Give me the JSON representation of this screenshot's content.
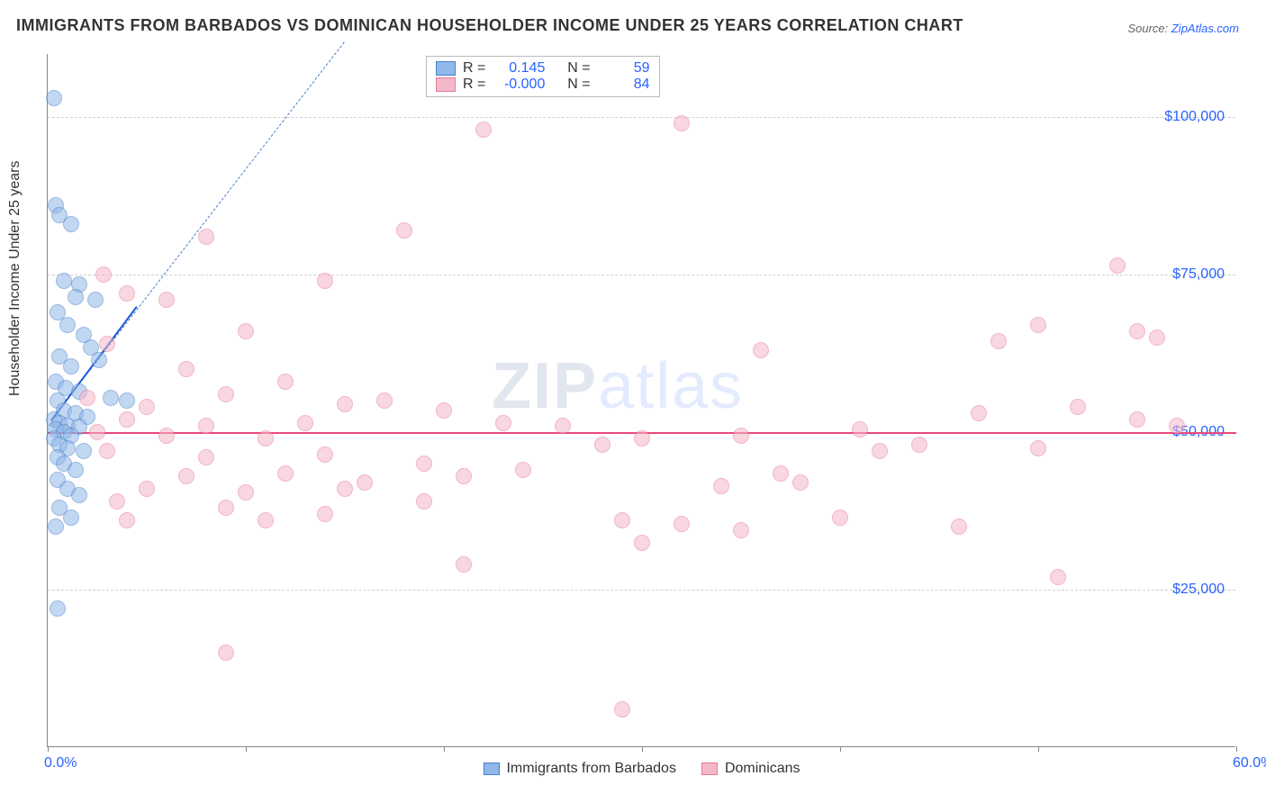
{
  "title": "IMMIGRANTS FROM BARBADOS VS DOMINICAN HOUSEHOLDER INCOME UNDER 25 YEARS CORRELATION CHART",
  "source_prefix": "Source: ",
  "source_link_text": "ZipAtlas.com",
  "y_axis_label": "Householder Income Under 25 years",
  "watermark_left": "ZIP",
  "watermark_right": "atlas",
  "chart": {
    "type": "scatter",
    "background_color": "#ffffff",
    "grid_color": "#d0d0d0",
    "axis_color": "#888888",
    "xlim": [
      0,
      60
    ],
    "ylim": [
      0,
      110000
    ],
    "x_ticks": [
      0,
      10,
      20,
      30,
      40,
      50,
      60
    ],
    "x_tick_labels": {
      "0": "0.0%",
      "60": "60.0%"
    },
    "y_gridlines": [
      25000,
      50000,
      75000,
      100000
    ],
    "y_tick_labels": {
      "25000": "$25,000",
      "50000": "$50,000",
      "75000": "$75,000",
      "100000": "$100,000"
    },
    "title_fontsize": 18,
    "label_fontsize": 16,
    "tick_fontsize": 16,
    "tick_color": "#2962ff",
    "point_radius": 9,
    "point_opacity": 0.55,
    "series": [
      {
        "id": "barbados",
        "label": "Immigrants from Barbados",
        "fill_color": "#8fb8e8",
        "stroke_color": "#4a7fc9",
        "R": "0.145",
        "N": "59",
        "trendline_solid": {
          "x1": 0.2,
          "y1": 52000,
          "x2": 4.5,
          "y2": 70000,
          "color": "#1e5bd6",
          "width": 2.5
        },
        "trendline_dashed": {
          "x1": 0.2,
          "y1": 52000,
          "x2": 15,
          "y2": 112000,
          "color": "#4a7fc9",
          "width": 1.2
        },
        "points": [
          {
            "x": 0.3,
            "y": 103000
          },
          {
            "x": 0.4,
            "y": 86000
          },
          {
            "x": 0.6,
            "y": 84500
          },
          {
            "x": 1.2,
            "y": 83000
          },
          {
            "x": 0.8,
            "y": 74000
          },
          {
            "x": 1.6,
            "y": 73500
          },
          {
            "x": 2.4,
            "y": 71000
          },
          {
            "x": 1.4,
            "y": 71500
          },
          {
            "x": 0.5,
            "y": 69000
          },
          {
            "x": 1.0,
            "y": 67000
          },
          {
            "x": 1.8,
            "y": 65500
          },
          {
            "x": 2.2,
            "y": 63500
          },
          {
            "x": 0.6,
            "y": 62000
          },
          {
            "x": 1.2,
            "y": 60500
          },
          {
            "x": 2.6,
            "y": 61500
          },
          {
            "x": 0.4,
            "y": 58000
          },
          {
            "x": 0.9,
            "y": 57000
          },
          {
            "x": 1.6,
            "y": 56500
          },
          {
            "x": 3.2,
            "y": 55500
          },
          {
            "x": 0.5,
            "y": 55000
          },
          {
            "x": 4.0,
            "y": 55000
          },
          {
            "x": 0.8,
            "y": 53500
          },
          {
            "x": 1.4,
            "y": 53000
          },
          {
            "x": 2.0,
            "y": 52500
          },
          {
            "x": 0.3,
            "y": 52000
          },
          {
            "x": 0.6,
            "y": 51500
          },
          {
            "x": 1.0,
            "y": 51000
          },
          {
            "x": 1.6,
            "y": 50800
          },
          {
            "x": 0.4,
            "y": 50500
          },
          {
            "x": 0.8,
            "y": 50000
          },
          {
            "x": 1.2,
            "y": 49500
          },
          {
            "x": 0.3,
            "y": 49000
          },
          {
            "x": 0.6,
            "y": 48000
          },
          {
            "x": 1.0,
            "y": 47500
          },
          {
            "x": 1.8,
            "y": 47000
          },
          {
            "x": 0.5,
            "y": 46000
          },
          {
            "x": 0.8,
            "y": 45000
          },
          {
            "x": 1.4,
            "y": 44000
          },
          {
            "x": 0.5,
            "y": 42500
          },
          {
            "x": 1.0,
            "y": 41000
          },
          {
            "x": 1.6,
            "y": 40000
          },
          {
            "x": 0.6,
            "y": 38000
          },
          {
            "x": 1.2,
            "y": 36500
          },
          {
            "x": 0.4,
            "y": 35000
          },
          {
            "x": 0.5,
            "y": 22000
          }
        ]
      },
      {
        "id": "dominicans",
        "label": "Dominicans",
        "fill_color": "#f4b8c8",
        "stroke_color": "#e87a9a",
        "R": "-0.000",
        "N": "84",
        "trendline_solid": {
          "x1": 0,
          "y1": 50000,
          "x2": 60,
          "y2": 50000,
          "color": "#e84a7a",
          "width": 2
        },
        "points": [
          {
            "x": 22,
            "y": 98000
          },
          {
            "x": 32,
            "y": 99000
          },
          {
            "x": 54,
            "y": 76500
          },
          {
            "x": 8,
            "y": 81000
          },
          {
            "x": 18,
            "y": 82000
          },
          {
            "x": 2.8,
            "y": 75000
          },
          {
            "x": 4.0,
            "y": 72000
          },
          {
            "x": 14,
            "y": 74000
          },
          {
            "x": 50,
            "y": 67000
          },
          {
            "x": 55,
            "y": 66000
          },
          {
            "x": 48,
            "y": 64500
          },
          {
            "x": 6,
            "y": 71000
          },
          {
            "x": 10,
            "y": 66000
          },
          {
            "x": 3,
            "y": 64000
          },
          {
            "x": 7,
            "y": 60000
          },
          {
            "x": 12,
            "y": 58000
          },
          {
            "x": 36,
            "y": 63000
          },
          {
            "x": 56,
            "y": 65000
          },
          {
            "x": 47,
            "y": 53000
          },
          {
            "x": 52,
            "y": 54000
          },
          {
            "x": 2,
            "y": 55500
          },
          {
            "x": 5,
            "y": 54000
          },
          {
            "x": 9,
            "y": 56000
          },
          {
            "x": 15,
            "y": 54500
          },
          {
            "x": 17,
            "y": 55000
          },
          {
            "x": 20,
            "y": 53500
          },
          {
            "x": 23,
            "y": 51500
          },
          {
            "x": 4,
            "y": 52000
          },
          {
            "x": 8,
            "y": 51000
          },
          {
            "x": 13,
            "y": 51500
          },
          {
            "x": 26,
            "y": 51000
          },
          {
            "x": 41,
            "y": 50500
          },
          {
            "x": 57,
            "y": 51000
          },
          {
            "x": 2.5,
            "y": 50000
          },
          {
            "x": 6,
            "y": 49500
          },
          {
            "x": 11,
            "y": 49000
          },
          {
            "x": 30,
            "y": 49000
          },
          {
            "x": 35,
            "y": 49500
          },
          {
            "x": 44,
            "y": 48000
          },
          {
            "x": 50,
            "y": 47500
          },
          {
            "x": 55,
            "y": 52000
          },
          {
            "x": 28,
            "y": 48000
          },
          {
            "x": 3,
            "y": 47000
          },
          {
            "x": 8,
            "y": 46000
          },
          {
            "x": 14,
            "y": 46500
          },
          {
            "x": 19,
            "y": 45000
          },
          {
            "x": 24,
            "y": 44000
          },
          {
            "x": 7,
            "y": 43000
          },
          {
            "x": 12,
            "y": 43500
          },
          {
            "x": 16,
            "y": 42000
          },
          {
            "x": 21,
            "y": 43000
          },
          {
            "x": 37,
            "y": 43500
          },
          {
            "x": 42,
            "y": 47000
          },
          {
            "x": 5,
            "y": 41000
          },
          {
            "x": 10,
            "y": 40500
          },
          {
            "x": 15,
            "y": 41000
          },
          {
            "x": 34,
            "y": 41500
          },
          {
            "x": 3.5,
            "y": 39000
          },
          {
            "x": 9,
            "y": 38000
          },
          {
            "x": 14,
            "y": 37000
          },
          {
            "x": 4,
            "y": 36000
          },
          {
            "x": 11,
            "y": 36000
          },
          {
            "x": 29,
            "y": 36000
          },
          {
            "x": 32,
            "y": 35500
          },
          {
            "x": 38,
            "y": 42000
          },
          {
            "x": 46,
            "y": 35000
          },
          {
            "x": 51,
            "y": 27000
          },
          {
            "x": 30,
            "y": 32500
          },
          {
            "x": 35,
            "y": 34500
          },
          {
            "x": 40,
            "y": 36500
          },
          {
            "x": 21,
            "y": 29000
          },
          {
            "x": 9,
            "y": 15000
          },
          {
            "x": 29,
            "y": 6000
          },
          {
            "x": 19,
            "y": 39000
          }
        ]
      }
    ]
  },
  "legend_top": {
    "R_label": "R =",
    "N_label": "N ="
  }
}
